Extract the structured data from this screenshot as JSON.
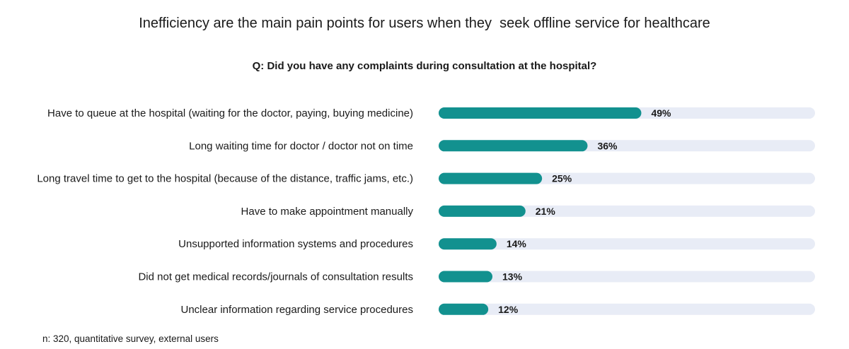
{
  "chart_data": {
    "type": "bar",
    "orientation": "horizontal",
    "title": "Inefficiency are the main pain points for users when they  seek offline service for healthcare",
    "subtitle": "Q: Did you have any complaints during consultation at the hospital?",
    "categories": [
      "Have to queue at the hospital (waiting for the doctor, paying, buying medicine)",
      "Long waiting time for doctor / doctor not on time",
      "Long travel time to get to the hospital (because of the distance, traffic jams, etc.)",
      "Have to make appointment manually",
      "Unsupported information systems and procedures",
      "Did not get medical records/journals of consultation results",
      "Unclear information regarding service procedures"
    ],
    "values": [
      49,
      36,
      25,
      21,
      14,
      13,
      12
    ],
    "value_labels": [
      "49%",
      "36%",
      "25%",
      "21%",
      "14%",
      "13%",
      "12%"
    ],
    "unit": "%",
    "xlim": [
      0,
      100
    ],
    "grid": false,
    "legend": "none",
    "bar_color": "#12918f",
    "track_color": "#e8ecf6"
  },
  "footnote": "n: 320, quantitative survey, external users"
}
